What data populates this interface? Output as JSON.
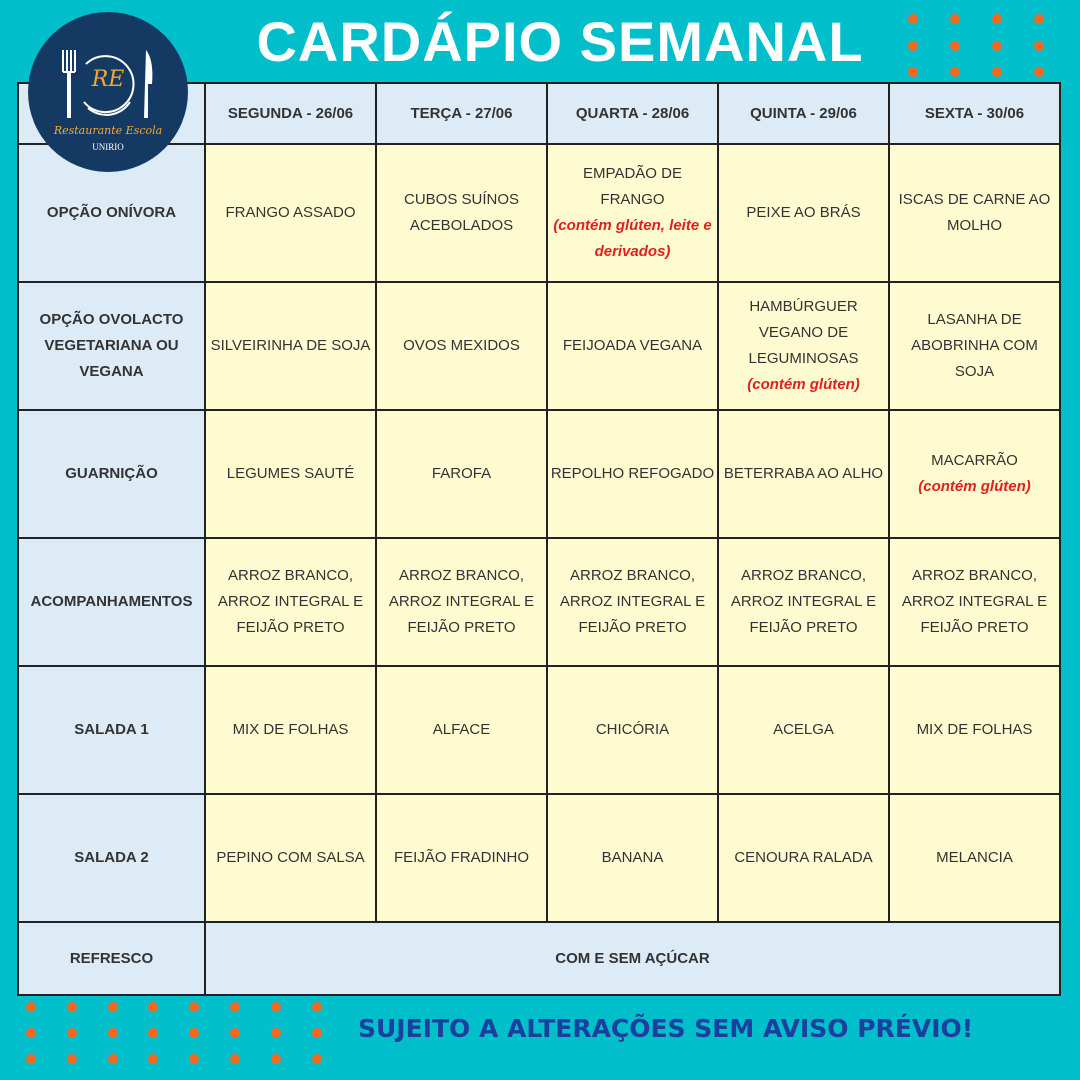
{
  "title": "CARDÁPIO SEMANAL",
  "logo": {
    "initials": "RE",
    "name": "Restaurante Escola",
    "org": "UNIRIO"
  },
  "colors": {
    "background": "#00bfcb",
    "dots": "#f26a21",
    "header_cells": "#ddebf6",
    "menu_cells": "#fffbd0",
    "allergen_note": "#e0201f",
    "footer": "#1b3f9e"
  },
  "days": [
    "SEGUNDA - 26/06",
    "TERÇA - 27/06",
    "QUARTA - 28/06",
    "QUINTA - 29/06",
    "SEXTA - 30/06"
  ],
  "rows": [
    {
      "label": "OPÇÃO ONÍVORA",
      "cells": [
        {
          "text": "FRANGO ASSADO"
        },
        {
          "text": "CUBOS SUÍNOS ACEBOLADOS"
        },
        {
          "text": "EMPADÃO DE FRANGO",
          "note": "(contém glúten, leite e derivados)"
        },
        {
          "text": "PEIXE AO BRÁS"
        },
        {
          "text": "ISCAS DE CARNE AO MOLHO"
        }
      ]
    },
    {
      "label": "OPÇÃO OVOLACTO VEGETARIANA OU VEGANA",
      "cells": [
        {
          "text": "SILVEIRINHA DE SOJA"
        },
        {
          "text": "OVOS MEXIDOS"
        },
        {
          "text": "FEIJOADA VEGANA"
        },
        {
          "text": "HAMBÚRGUER VEGANO DE LEGUMINOSAS",
          "note": "(contém glúten)"
        },
        {
          "text": "LASANHA DE ABOBRINHA COM SOJA"
        }
      ]
    },
    {
      "label": "GUARNIÇÃO",
      "cells": [
        {
          "text": "LEGUMES SAUTÉ"
        },
        {
          "text": "FAROFA"
        },
        {
          "text": "REPOLHO REFOGADO"
        },
        {
          "text": "BETERRABA AO ALHO"
        },
        {
          "text": "MACARRÃO",
          "note": "(contém glúten)"
        }
      ]
    },
    {
      "label": "ACOMPANHAMENTOS",
      "cells": [
        {
          "text": "ARROZ BRANCO, ARROZ INTEGRAL E FEIJÃO PRETO"
        },
        {
          "text": "ARROZ BRANCO, ARROZ INTEGRAL E FEIJÃO PRETO"
        },
        {
          "text": "ARROZ BRANCO, ARROZ INTEGRAL E FEIJÃO PRETO"
        },
        {
          "text": "ARROZ BRANCO, ARROZ INTEGRAL E FEIJÃO PRETO"
        },
        {
          "text": "ARROZ BRANCO, ARROZ INTEGRAL E FEIJÃO PRETO"
        }
      ]
    },
    {
      "label": "SALADA 1",
      "cells": [
        {
          "text": "MIX DE FOLHAS"
        },
        {
          "text": "ALFACE"
        },
        {
          "text": "CHICÓRIA"
        },
        {
          "text": "ACELGA"
        },
        {
          "text": "MIX DE FOLHAS"
        }
      ]
    },
    {
      "label": "SALADA 2",
      "cells": [
        {
          "text": "PEPINO COM SALSA"
        },
        {
          "text": "FEIJÃO FRADINHO"
        },
        {
          "text": "BANANA"
        },
        {
          "text": "CENOURA RALADA"
        },
        {
          "text": "MELANCIA"
        }
      ]
    }
  ],
  "refresco": {
    "label": "REFRESCO",
    "value": "COM E SEM AÇÚCAR"
  },
  "footer": "SUJEITO A ALTERAÇÕES SEM AVISO PRÉVIO!"
}
